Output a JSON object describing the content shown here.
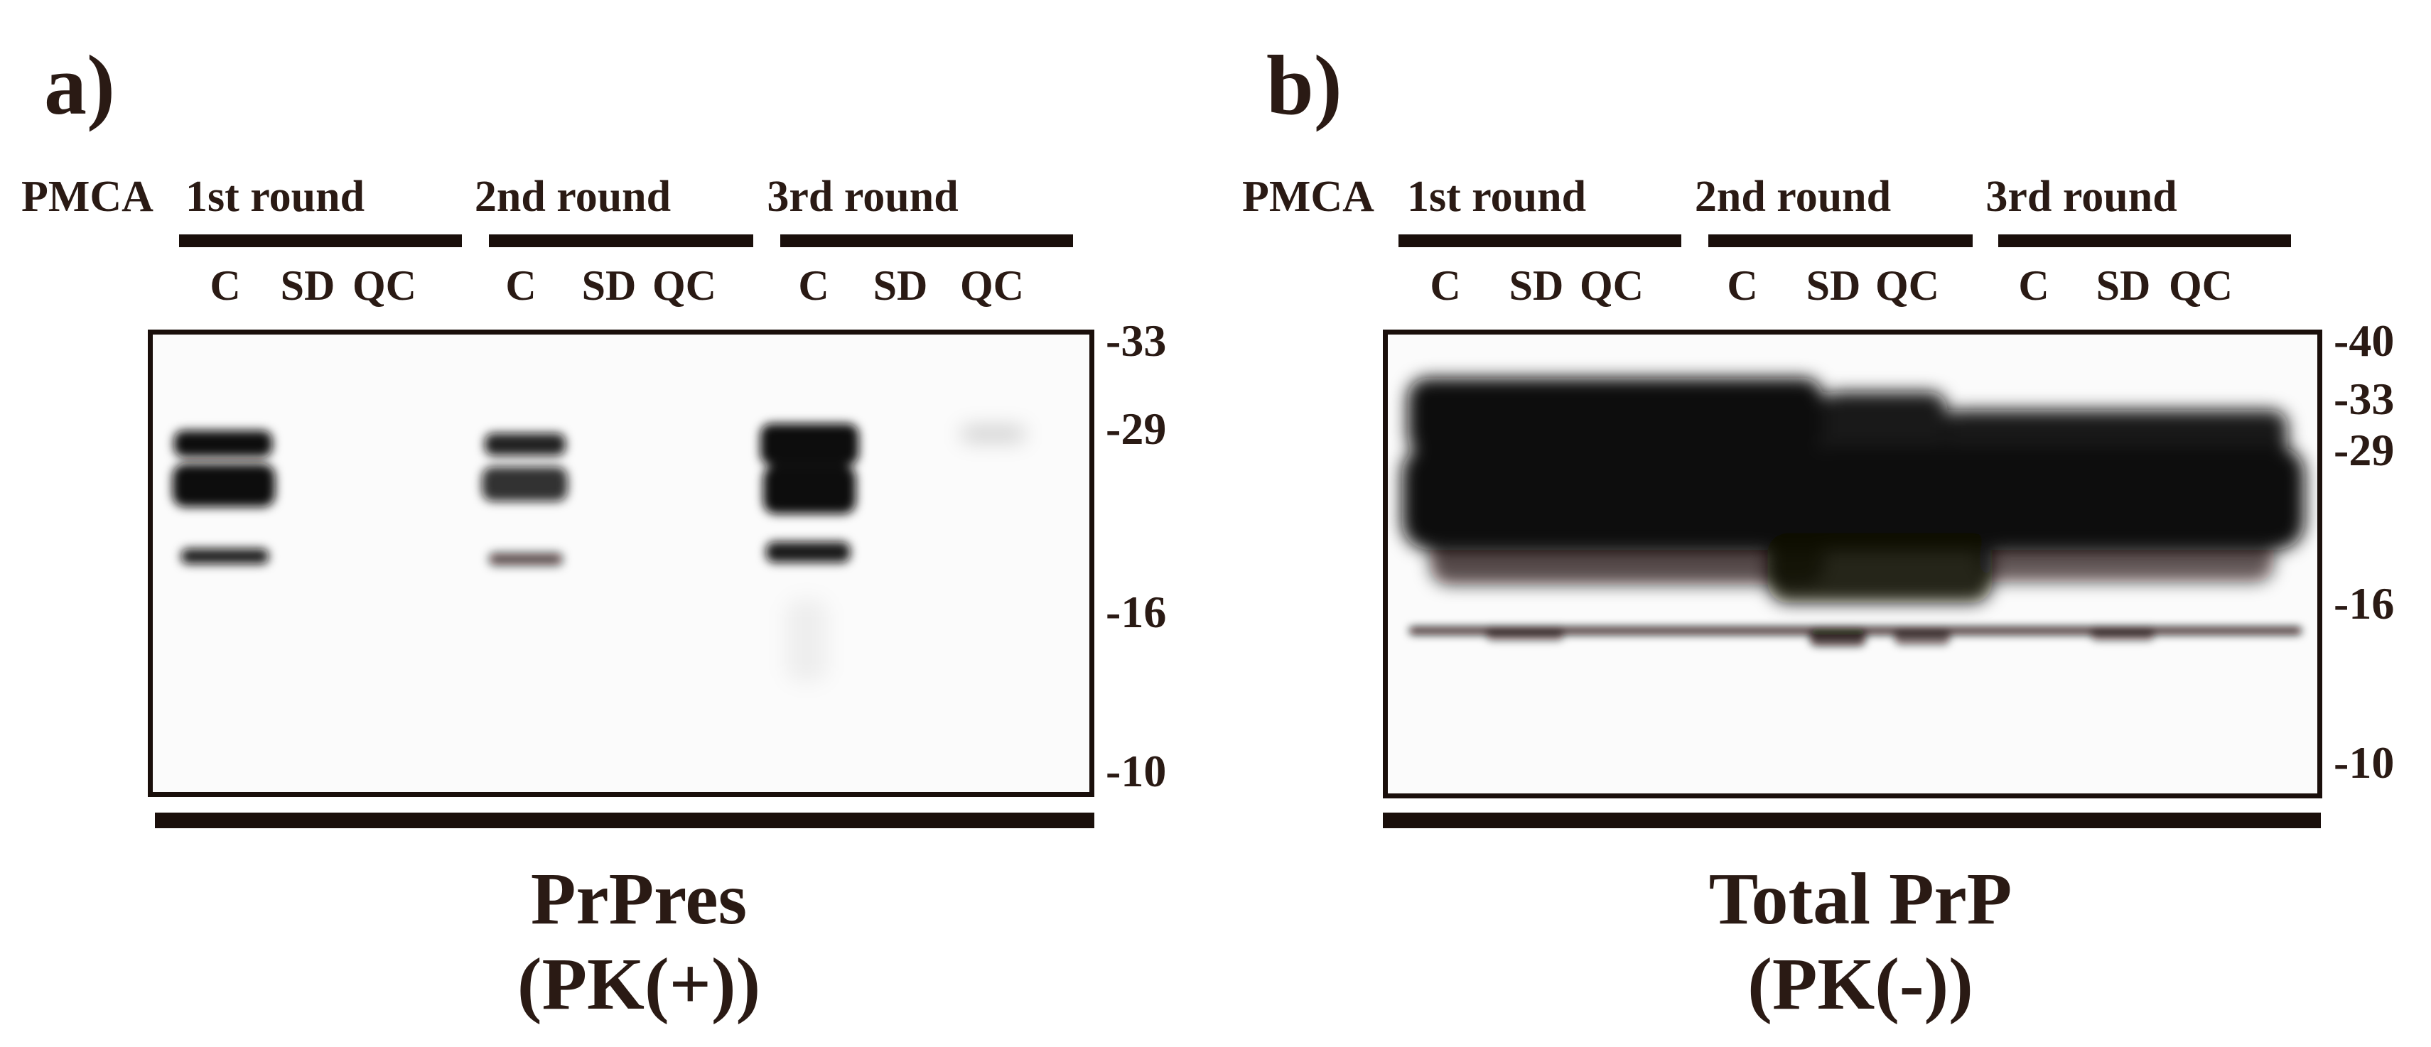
{
  "panel_a": {
    "letter": "a)",
    "pmca_label": "PMCA",
    "rounds": [
      "1st round",
      "2nd round",
      "3rd round"
    ],
    "lanes": [
      "C",
      "SD",
      "QC",
      "C",
      "SD",
      "QC",
      "C",
      "SD",
      "QC"
    ],
    "mw_markers": [
      "-33",
      "-29",
      "-16",
      "-10"
    ],
    "caption_line1": "PrPres",
    "caption_line2": "(PK(+))"
  },
  "panel_b": {
    "letter": "b)",
    "pmca_label": "PMCA",
    "rounds": [
      "1st round",
      "2nd round",
      "3rd round"
    ],
    "lanes": [
      "C",
      "SD",
      "QC",
      "C",
      "SD",
      "QC",
      "C",
      "SD",
      "QC"
    ],
    "mw_markers": [
      "-40",
      "-33",
      "-29",
      "-16",
      "-10"
    ],
    "caption_line1": "Total PrP",
    "caption_line2": "(PK(-))"
  },
  "colors": {
    "ink": "#1a0f0b",
    "text": "#2a1a14",
    "background": "#ffffff"
  }
}
